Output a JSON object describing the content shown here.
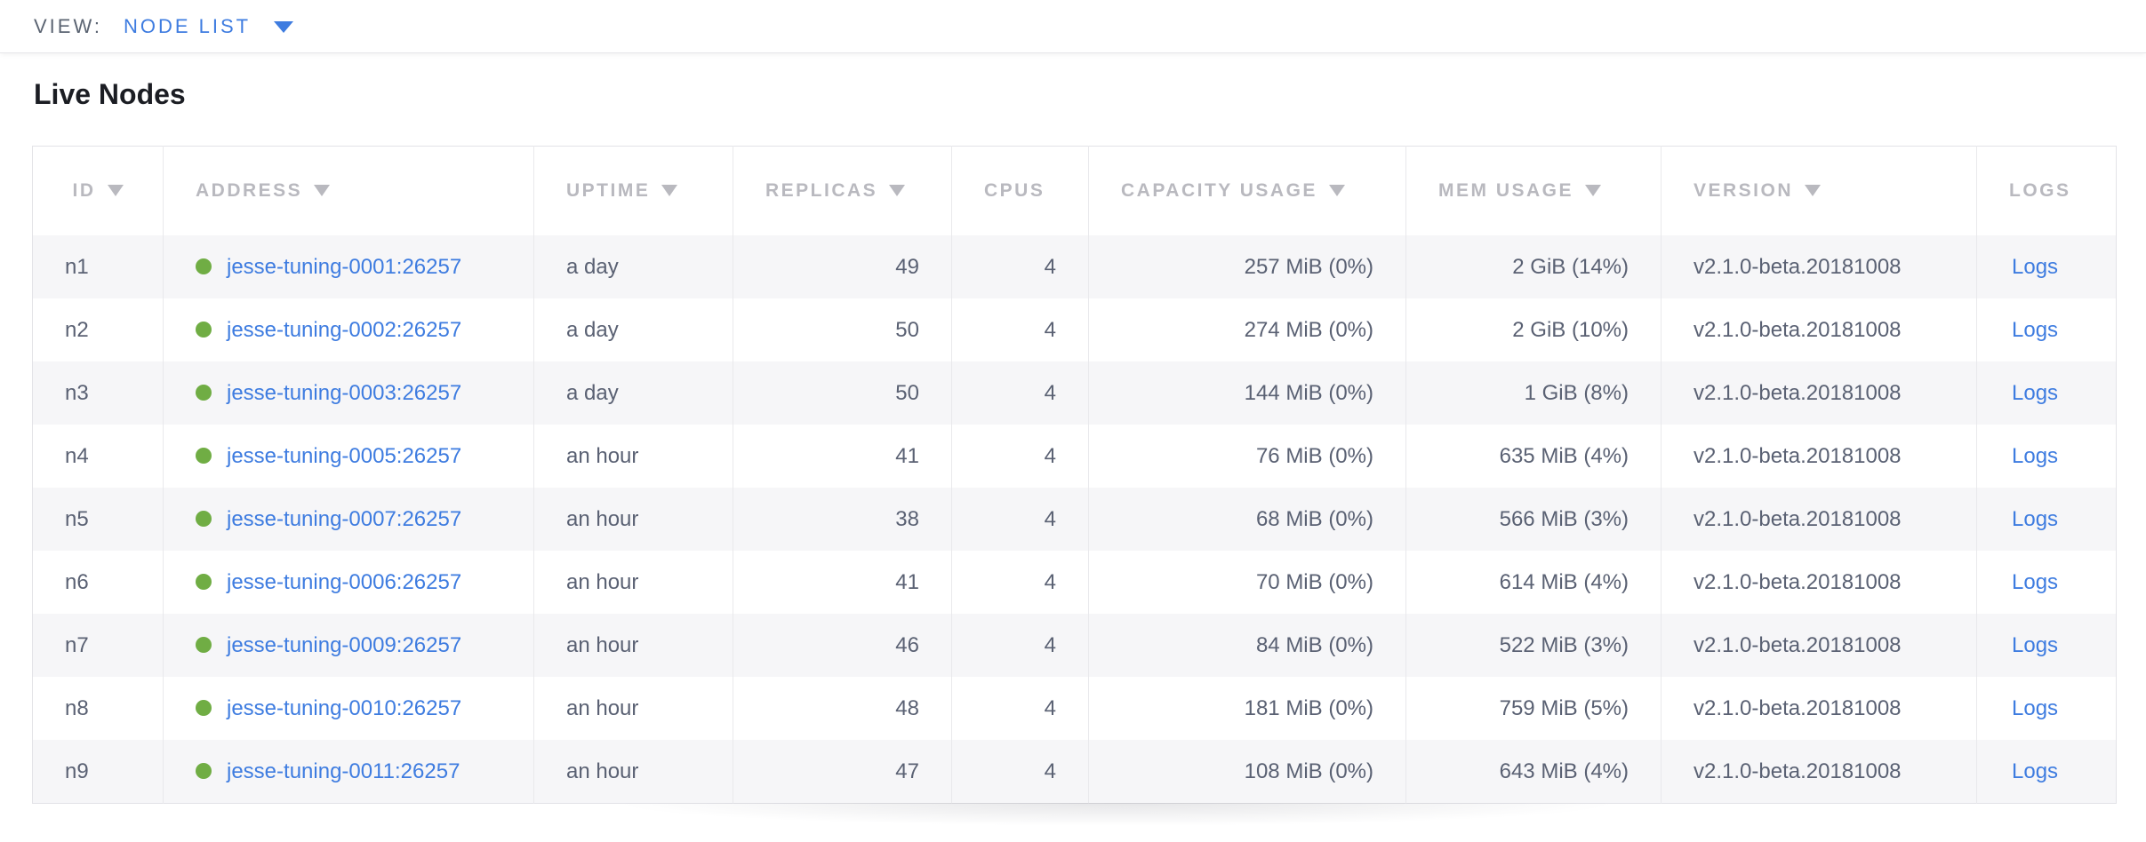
{
  "view_bar": {
    "label": "VIEW:",
    "selected": "NODE LIST"
  },
  "page_title": "Live Nodes",
  "colors": {
    "accent_blue": "#3e7ce0",
    "status_green": "#70ad44",
    "header_gray": "#b9b9bf",
    "body_text": "#5a6173"
  },
  "table": {
    "columns": [
      {
        "key": "id",
        "label": "ID",
        "sortable": true
      },
      {
        "key": "address",
        "label": "ADDRESS",
        "sortable": true
      },
      {
        "key": "uptime",
        "label": "UPTIME",
        "sortable": true
      },
      {
        "key": "replicas",
        "label": "REPLICAS",
        "sortable": true
      },
      {
        "key": "cpus",
        "label": "CPUS",
        "sortable": false
      },
      {
        "key": "capacity",
        "label": "CAPACITY USAGE",
        "sortable": true
      },
      {
        "key": "mem",
        "label": "MEM USAGE",
        "sortable": true
      },
      {
        "key": "version",
        "label": "VERSION",
        "sortable": true
      },
      {
        "key": "logs",
        "label": "LOGS",
        "sortable": false
      }
    ],
    "rows": [
      {
        "id": "n1",
        "status": "healthy",
        "address": "jesse-tuning-0001:26257",
        "uptime": "a day",
        "replicas": "49",
        "cpus": "4",
        "capacity": "257 MiB (0%)",
        "mem": "2 GiB (14%)",
        "version": "v2.1.0-beta.20181008",
        "logs": "Logs"
      },
      {
        "id": "n2",
        "status": "healthy",
        "address": "jesse-tuning-0002:26257",
        "uptime": "a day",
        "replicas": "50",
        "cpus": "4",
        "capacity": "274 MiB (0%)",
        "mem": "2 GiB (10%)",
        "version": "v2.1.0-beta.20181008",
        "logs": "Logs"
      },
      {
        "id": "n3",
        "status": "healthy",
        "address": "jesse-tuning-0003:26257",
        "uptime": "a day",
        "replicas": "50",
        "cpus": "4",
        "capacity": "144 MiB (0%)",
        "mem": "1 GiB (8%)",
        "version": "v2.1.0-beta.20181008",
        "logs": "Logs"
      },
      {
        "id": "n4",
        "status": "healthy",
        "address": "jesse-tuning-0005:26257",
        "uptime": "an hour",
        "replicas": "41",
        "cpus": "4",
        "capacity": "76 MiB (0%)",
        "mem": "635 MiB (4%)",
        "version": "v2.1.0-beta.20181008",
        "logs": "Logs"
      },
      {
        "id": "n5",
        "status": "healthy",
        "address": "jesse-tuning-0007:26257",
        "uptime": "an hour",
        "replicas": "38",
        "cpus": "4",
        "capacity": "68 MiB (0%)",
        "mem": "566 MiB (3%)",
        "version": "v2.1.0-beta.20181008",
        "logs": "Logs"
      },
      {
        "id": "n6",
        "status": "healthy",
        "address": "jesse-tuning-0006:26257",
        "uptime": "an hour",
        "replicas": "41",
        "cpus": "4",
        "capacity": "70 MiB (0%)",
        "mem": "614 MiB (4%)",
        "version": "v2.1.0-beta.20181008",
        "logs": "Logs"
      },
      {
        "id": "n7",
        "status": "healthy",
        "address": "jesse-tuning-0009:26257",
        "uptime": "an hour",
        "replicas": "46",
        "cpus": "4",
        "capacity": "84 MiB (0%)",
        "mem": "522 MiB (3%)",
        "version": "v2.1.0-beta.20181008",
        "logs": "Logs"
      },
      {
        "id": "n8",
        "status": "healthy",
        "address": "jesse-tuning-0010:26257",
        "uptime": "an hour",
        "replicas": "48",
        "cpus": "4",
        "capacity": "181 MiB (0%)",
        "mem": "759 MiB (5%)",
        "version": "v2.1.0-beta.20181008",
        "logs": "Logs"
      },
      {
        "id": "n9",
        "status": "healthy",
        "address": "jesse-tuning-0011:26257",
        "uptime": "an hour",
        "replicas": "47",
        "cpus": "4",
        "capacity": "108 MiB (0%)",
        "mem": "643 MiB (4%)",
        "version": "v2.1.0-beta.20181008",
        "logs": "Logs"
      }
    ]
  }
}
